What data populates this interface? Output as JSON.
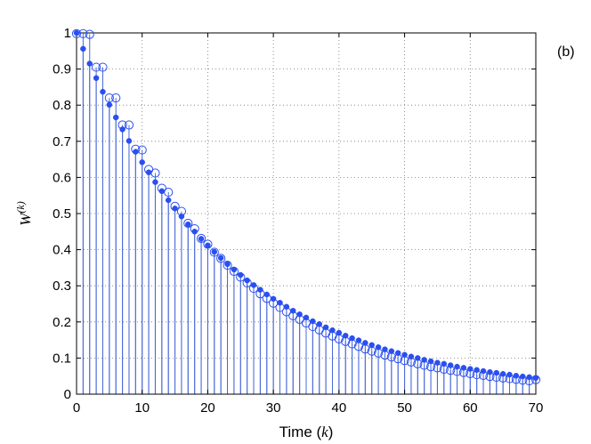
{
  "chart_data": {
    "type": "stem",
    "panel_label": "(b)",
    "xlabel": {
      "text": "Time (",
      "var": "k",
      "close": ")"
    },
    "ylabel": {
      "base": "W",
      "sup": "(k)"
    },
    "xlim": [
      0,
      70
    ],
    "ylim": [
      0,
      1
    ],
    "xticks": [
      0,
      10,
      20,
      30,
      40,
      50,
      60,
      70
    ],
    "yticks": [
      0,
      0.1,
      0.2,
      0.3,
      0.4,
      0.5,
      0.6,
      0.7,
      0.8,
      0.9,
      1
    ],
    "ytick_labels": [
      "0",
      "0.1",
      "0.2",
      "0.3",
      "0.4",
      "0.5",
      "0.6",
      "0.7",
      "0.8",
      "0.9",
      "1"
    ],
    "grid": true,
    "colors": {
      "series": "#2a4ff0",
      "stem": "#4a6ad8",
      "grid": "#777777"
    },
    "series": [
      {
        "marker": "filled-dot",
        "x": [
          0,
          1,
          2,
          3,
          4,
          5,
          6,
          7,
          8,
          9,
          10,
          11,
          12,
          13,
          14,
          15,
          16,
          17,
          18,
          19,
          20,
          21,
          22,
          23,
          24,
          25,
          26,
          27,
          28,
          29,
          30,
          31,
          32,
          33,
          34,
          35,
          36,
          37,
          38,
          39,
          40,
          41,
          42,
          43,
          44,
          45,
          46,
          47,
          48,
          49,
          50,
          51,
          52,
          53,
          54,
          55,
          56,
          57,
          58,
          59,
          60,
          61,
          62,
          63,
          64,
          65,
          66,
          67,
          68,
          69,
          70
        ],
        "y": [
          1.0,
          0.956,
          0.915,
          0.875,
          0.837,
          0.801,
          0.766,
          0.733,
          0.701,
          0.671,
          0.642,
          0.614,
          0.587,
          0.562,
          0.537,
          0.514,
          0.492,
          0.47,
          0.45,
          0.43,
          0.412,
          0.394,
          0.377,
          0.36,
          0.345,
          0.33,
          0.315,
          0.302,
          0.289,
          0.276,
          0.264,
          0.253,
          0.242,
          0.231,
          0.221,
          0.212,
          0.202,
          0.194,
          0.185,
          0.177,
          0.17,
          0.162,
          0.155,
          0.149,
          0.142,
          0.136,
          0.13,
          0.124,
          0.119,
          0.114,
          0.109,
          0.104,
          0.1,
          0.095,
          0.091,
          0.087,
          0.084,
          0.08,
          0.076,
          0.073,
          0.07,
          0.067,
          0.064,
          0.061,
          0.059,
          0.056,
          0.054,
          0.051,
          0.049,
          0.047,
          0.045
        ]
      },
      {
        "marker": "open-circle",
        "x": [
          0,
          1,
          2,
          3,
          4,
          5,
          6,
          7,
          8,
          9,
          10,
          11,
          12,
          13,
          14,
          15,
          16,
          17,
          18,
          19,
          20,
          21,
          22,
          23,
          24,
          25,
          26,
          27,
          28,
          29,
          30,
          31,
          32,
          33,
          34,
          35,
          36,
          37,
          38,
          39,
          40,
          41,
          42,
          43,
          44,
          45,
          46,
          47,
          48,
          49,
          50,
          51,
          52,
          53,
          54,
          55,
          56,
          57,
          58,
          59,
          60,
          61,
          62,
          63,
          64,
          65,
          66,
          67,
          68,
          69,
          70
        ],
        "y": [
          0.998,
          0.998,
          0.996,
          0.905,
          0.905,
          0.82,
          0.82,
          0.745,
          0.745,
          0.678,
          0.676,
          0.622,
          0.612,
          0.57,
          0.559,
          0.52,
          0.506,
          0.473,
          0.458,
          0.431,
          0.415,
          0.393,
          0.376,
          0.357,
          0.34,
          0.324,
          0.308,
          0.293,
          0.278,
          0.265,
          0.252,
          0.24,
          0.228,
          0.217,
          0.207,
          0.197,
          0.187,
          0.178,
          0.169,
          0.161,
          0.153,
          0.146,
          0.139,
          0.132,
          0.125,
          0.119,
          0.114,
          0.108,
          0.103,
          0.098,
          0.093,
          0.089,
          0.084,
          0.08,
          0.076,
          0.073,
          0.069,
          0.066,
          0.063,
          0.06,
          0.057,
          0.054,
          0.052,
          0.049,
          0.047,
          0.045,
          0.043,
          0.041,
          0.039,
          0.037,
          0.04
        ]
      }
    ]
  }
}
